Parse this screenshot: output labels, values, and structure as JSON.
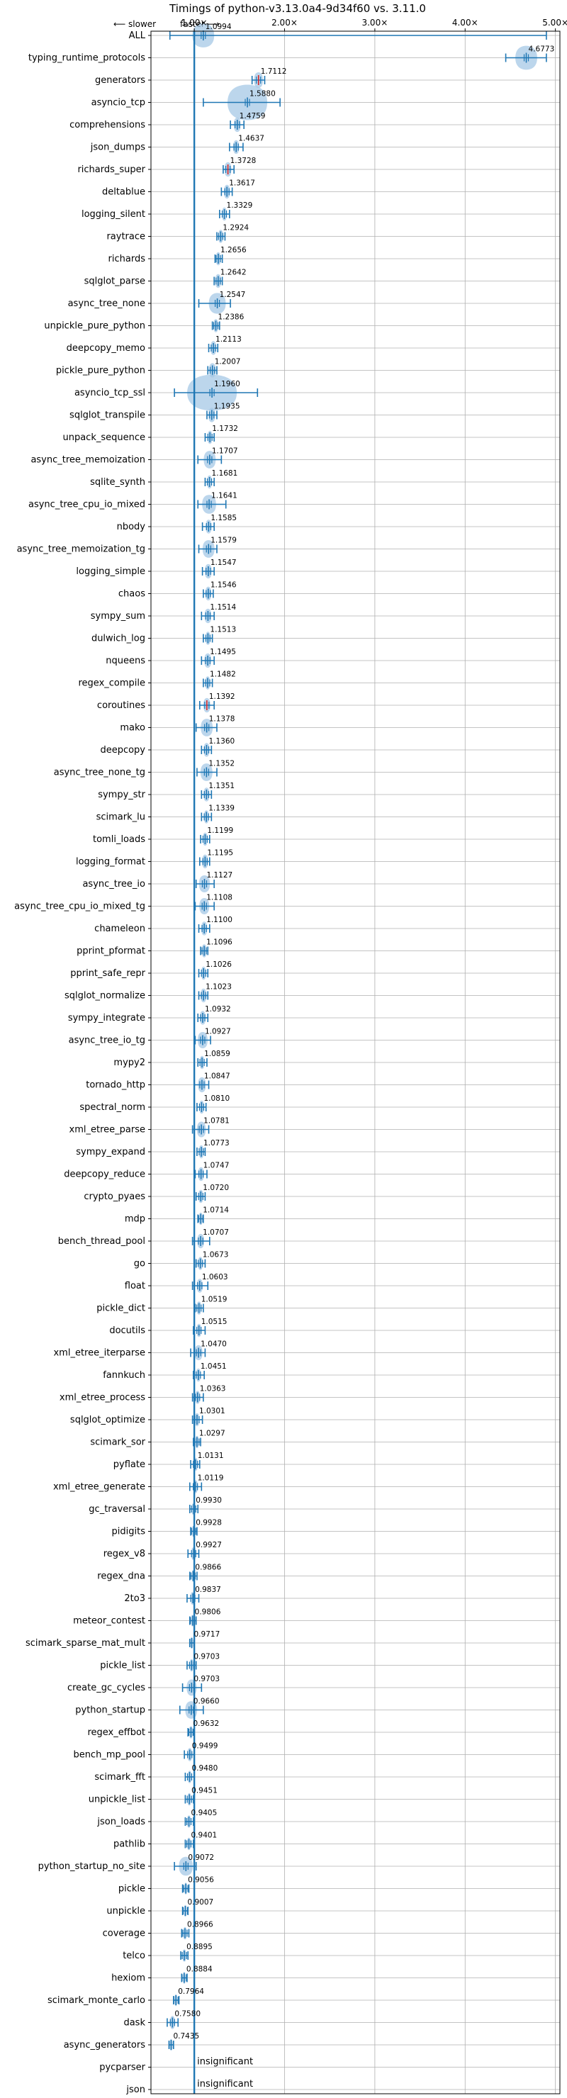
{
  "chart_data": {
    "type": "violin",
    "title": "Timings of python-v3.13.0a4-9d34f60 vs. 3.11.0",
    "top_annotation": {
      "left": "⟵ slower",
      "right": "faster ⟶"
    },
    "xlabel": "",
    "ylabel": "",
    "xlim": [
      0.52,
      5.05
    ],
    "xticks": [
      1,
      2,
      3,
      4,
      5
    ],
    "xtick_labels": [
      "1.00×",
      "2.00×",
      "3.00×",
      "4.00×",
      "5.00×"
    ],
    "reference_line": 1.0,
    "grid": true,
    "colors": {
      "line": "#1f77b4",
      "violin": "#a6c8e6",
      "median": "#d62728",
      "grid": "#b0b0b0"
    },
    "categories": [
      "ALL",
      "typing_runtime_protocols",
      "generators",
      "asyncio_tcp",
      "comprehensions",
      "json_dumps",
      "richards_super",
      "deltablue",
      "logging_silent",
      "raytrace",
      "richards",
      "sqlglot_parse",
      "async_tree_none",
      "unpickle_pure_python",
      "deepcopy_memo",
      "pickle_pure_python",
      "asyncio_tcp_ssl",
      "sqlglot_transpile",
      "unpack_sequence",
      "async_tree_memoization",
      "sqlite_synth",
      "async_tree_cpu_io_mixed",
      "nbody",
      "async_tree_memoization_tg",
      "logging_simple",
      "chaos",
      "sympy_sum",
      "dulwich_log",
      "nqueens",
      "regex_compile",
      "coroutines",
      "mako",
      "deepcopy",
      "async_tree_none_tg",
      "sympy_str",
      "scimark_lu",
      "tomli_loads",
      "logging_format",
      "async_tree_io",
      "async_tree_cpu_io_mixed_tg",
      "chameleon",
      "pprint_pformat",
      "pprint_safe_repr",
      "sqlglot_normalize",
      "sympy_integrate",
      "async_tree_io_tg",
      "mypy2",
      "tornado_http",
      "spectral_norm",
      "xml_etree_parse",
      "sympy_expand",
      "deepcopy_reduce",
      "crypto_pyaes",
      "mdp",
      "bench_thread_pool",
      "go",
      "float",
      "pickle_dict",
      "docutils",
      "xml_etree_iterparse",
      "fannkuch",
      "xml_etree_process",
      "sqlglot_optimize",
      "scimark_sor",
      "pyflate",
      "xml_etree_generate",
      "gc_traversal",
      "pidigits",
      "regex_v8",
      "regex_dna",
      "2to3",
      "meteor_contest",
      "scimark_sparse_mat_mult",
      "pickle_list",
      "create_gc_cycles",
      "python_startup",
      "regex_effbot",
      "bench_mp_pool",
      "scimark_fft",
      "unpickle_list",
      "json_loads",
      "pathlib",
      "python_startup_no_site",
      "pickle",
      "unpickle",
      "coverage",
      "telco",
      "hexiom",
      "scimark_monte_carlo",
      "dask",
      "async_generators",
      "pycparser",
      "json"
    ],
    "series": [
      {
        "values": [
          1.0994,
          4.6773,
          1.7112,
          1.588,
          1.4759,
          1.4637,
          1.3728,
          1.3617,
          1.3329,
          1.2924,
          1.2656,
          1.2642,
          1.2547,
          1.2386,
          1.2113,
          1.2007,
          1.196,
          1.1935,
          1.1732,
          1.1707,
          1.1681,
          1.1641,
          1.1585,
          1.1579,
          1.1547,
          1.1546,
          1.1514,
          1.1513,
          1.1495,
          1.1482,
          1.1392,
          1.1378,
          1.136,
          1.1352,
          1.1351,
          1.1339,
          1.1199,
          1.1195,
          1.1127,
          1.1108,
          1.11,
          1.1096,
          1.1026,
          1.1023,
          1.0932,
          1.0927,
          1.0859,
          1.0847,
          1.081,
          1.0781,
          1.0773,
          1.0747,
          1.072,
          1.0714,
          1.0707,
          1.0673,
          1.0603,
          1.0519,
          1.0515,
          1.047,
          1.0451,
          1.0363,
          1.0301,
          1.0297,
          1.0131,
          1.0119,
          0.993,
          0.9928,
          0.9927,
          0.9866,
          0.9837,
          0.9806,
          0.9717,
          0.9703,
          0.9703,
          0.966,
          0.9632,
          0.9499,
          0.948,
          0.9451,
          0.9405,
          0.9401,
          0.9072,
          0.9056,
          0.9007,
          0.8966,
          0.8895,
          0.8884,
          0.7964,
          0.758,
          0.7435,
          null,
          null
        ],
        "labels": [
          "1.0994",
          "4.6773",
          "1.7112",
          "1.5880",
          "1.4759",
          "1.4637",
          "1.3728",
          "1.3617",
          "1.3329",
          "1.2924",
          "1.2656",
          "1.2642",
          "1.2547",
          "1.2386",
          "1.2113",
          "1.2007",
          "1.1960",
          "1.1935",
          "1.1732",
          "1.1707",
          "1.1681",
          "1.1641",
          "1.1585",
          "1.1579",
          "1.1547",
          "1.1546",
          "1.1514",
          "1.1513",
          "1.1495",
          "1.1482",
          "1.1392",
          "1.1378",
          "1.1360",
          "1.1352",
          "1.1351",
          "1.1339",
          "1.1199",
          "1.1195",
          "1.1127",
          "1.1108",
          "1.1100",
          "1.1096",
          "1.1026",
          "1.1023",
          "1.0932",
          "1.0927",
          "1.0859",
          "1.0847",
          "1.0810",
          "1.0781",
          "1.0773",
          "1.0747",
          "1.0720",
          "1.0714",
          "1.0707",
          "1.0673",
          "1.0603",
          "1.0519",
          "1.0515",
          "1.0470",
          "1.0451",
          "1.0363",
          "1.0301",
          "1.0297",
          "1.0131",
          "1.0119",
          "0.9930",
          "0.9928",
          "0.9927",
          "0.9866",
          "0.9837",
          "0.9806",
          "0.9717",
          "0.9703",
          "0.9703",
          "0.9660",
          "0.9632",
          "0.9499",
          "0.9480",
          "0.9451",
          "0.9405",
          "0.9401",
          "0.9072",
          "0.9056",
          "0.9007",
          "0.8966",
          "0.8895",
          "0.8884",
          "0.7964",
          "0.7580",
          "0.7435",
          "insignificant",
          "insignificant"
        ],
        "ranges": [
          [
            0.73,
            4.9
          ],
          [
            4.45,
            4.9
          ],
          [
            1.64,
            1.78
          ],
          [
            1.1,
            1.95
          ],
          [
            1.4,
            1.55
          ],
          [
            1.39,
            1.54
          ],
          [
            1.32,
            1.44
          ],
          [
            1.3,
            1.42
          ],
          [
            1.28,
            1.39
          ],
          [
            1.25,
            1.34
          ],
          [
            1.23,
            1.31
          ],
          [
            1.22,
            1.31
          ],
          [
            1.05,
            1.4
          ],
          [
            1.2,
            1.28
          ],
          [
            1.16,
            1.26
          ],
          [
            1.15,
            1.25
          ],
          [
            0.78,
            1.7
          ],
          [
            1.14,
            1.25
          ],
          [
            1.12,
            1.22
          ],
          [
            1.04,
            1.3
          ],
          [
            1.12,
            1.22
          ],
          [
            1.04,
            1.35
          ],
          [
            1.09,
            1.22
          ],
          [
            1.05,
            1.25
          ],
          [
            1.09,
            1.22
          ],
          [
            1.1,
            1.21
          ],
          [
            1.08,
            1.22
          ],
          [
            1.1,
            1.2
          ],
          [
            1.08,
            1.22
          ],
          [
            1.1,
            1.2
          ],
          [
            1.06,
            1.22
          ],
          [
            1.02,
            1.25
          ],
          [
            1.08,
            1.19
          ],
          [
            1.03,
            1.25
          ],
          [
            1.08,
            1.19
          ],
          [
            1.08,
            1.19
          ],
          [
            1.07,
            1.17
          ],
          [
            1.06,
            1.17
          ],
          [
            1.02,
            1.22
          ],
          [
            1.01,
            1.22
          ],
          [
            1.05,
            1.17
          ],
          [
            1.07,
            1.15
          ],
          [
            1.05,
            1.15
          ],
          [
            1.05,
            1.15
          ],
          [
            1.04,
            1.15
          ],
          [
            1.01,
            1.18
          ],
          [
            1.04,
            1.14
          ],
          [
            1.0,
            1.16
          ],
          [
            1.03,
            1.13
          ],
          [
            0.98,
            1.16
          ],
          [
            1.03,
            1.12
          ],
          [
            1.01,
            1.14
          ],
          [
            1.02,
            1.12
          ],
          [
            1.04,
            1.1
          ],
          [
            0.98,
            1.17
          ],
          [
            1.02,
            1.12
          ],
          [
            0.98,
            1.15
          ],
          [
            1.01,
            1.1
          ],
          [
            0.99,
            1.12
          ],
          [
            0.96,
            1.12
          ],
          [
            0.99,
            1.11
          ],
          [
            0.98,
            1.1
          ],
          [
            0.98,
            1.09
          ],
          [
            0.99,
            1.07
          ],
          [
            0.96,
            1.06
          ],
          [
            0.95,
            1.08
          ],
          [
            0.95,
            1.04
          ],
          [
            0.96,
            1.03
          ],
          [
            0.93,
            1.05
          ],
          [
            0.95,
            1.03
          ],
          [
            0.92,
            1.05
          ],
          [
            0.95,
            1.02
          ],
          [
            0.95,
            1.0
          ],
          [
            0.92,
            1.02
          ],
          [
            0.87,
            1.08
          ],
          [
            0.84,
            1.1
          ],
          [
            0.93,
            1.0
          ],
          [
            0.89,
            1.0
          ],
          [
            0.9,
            1.0
          ],
          [
            0.9,
            0.99
          ],
          [
            0.9,
            0.99
          ],
          [
            0.9,
            0.99
          ],
          [
            0.78,
            1.02
          ],
          [
            0.87,
            0.94
          ],
          [
            0.87,
            0.93
          ],
          [
            0.86,
            0.94
          ],
          [
            0.85,
            0.93
          ],
          [
            0.86,
            0.92
          ],
          [
            0.77,
            0.83
          ],
          [
            0.7,
            0.82
          ],
          [
            0.72,
            0.77
          ],
          null,
          null
        ],
        "spreads": [
          0.22,
          0.22,
          0.09,
          0.4,
          0.07,
          0.06,
          0.07,
          0.06,
          0.05,
          0.05,
          0.05,
          0.06,
          0.17,
          0.05,
          0.06,
          0.07,
          0.5,
          0.07,
          0.05,
          0.12,
          0.05,
          0.14,
          0.06,
          0.12,
          0.07,
          0.06,
          0.07,
          0.05,
          0.07,
          0.05,
          0.07,
          0.12,
          0.06,
          0.12,
          0.06,
          0.05,
          0.05,
          0.06,
          0.11,
          0.1,
          0.06,
          0.05,
          0.05,
          0.06,
          0.06,
          0.1,
          0.05,
          0.08,
          0.05,
          0.09,
          0.05,
          0.06,
          0.05,
          0.04,
          0.07,
          0.05,
          0.06,
          0.05,
          0.05,
          0.08,
          0.05,
          0.05,
          0.05,
          0.04,
          0.05,
          0.05,
          0.04,
          0.03,
          0.05,
          0.03,
          0.05,
          0.03,
          0.03,
          0.04,
          0.1,
          0.12,
          0.04,
          0.05,
          0.04,
          0.04,
          0.04,
          0.04,
          0.14,
          0.03,
          0.03,
          0.04,
          0.04,
          0.03,
          0.03,
          0.05,
          0.03,
          null,
          null
        ],
        "median_red": [
          false,
          false,
          true,
          false,
          false,
          false,
          true,
          false,
          false,
          false,
          false,
          false,
          false,
          false,
          false,
          false,
          false,
          false,
          false,
          false,
          false,
          false,
          false,
          false,
          false,
          false,
          false,
          false,
          false,
          false,
          true,
          false,
          false,
          false,
          false,
          false,
          false,
          false,
          false,
          false,
          false,
          false,
          false,
          false,
          false,
          false,
          false,
          false,
          false,
          false,
          false,
          false,
          false,
          false,
          false,
          false,
          false,
          false,
          false,
          false,
          false,
          false,
          false,
          false,
          false,
          false,
          false,
          false,
          false,
          false,
          false,
          false,
          false,
          false,
          false,
          false,
          false,
          false,
          false,
          false,
          false,
          false,
          false,
          false,
          false,
          false,
          false,
          false,
          false,
          false,
          false,
          false,
          false
        ]
      }
    ]
  }
}
